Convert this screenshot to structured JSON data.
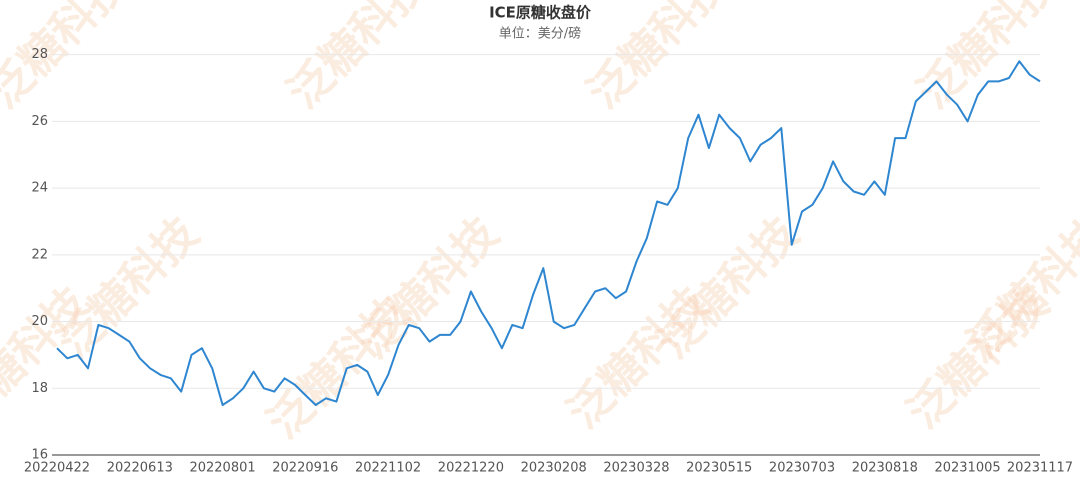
{
  "chart_data": {
    "type": "line",
    "title": "ICE原糖收盘价",
    "subtitle": "单位：美分/磅",
    "watermark": "泛糖科技",
    "categories": [
      "20220422",
      null,
      null,
      null,
      null,
      null,
      null,
      null,
      "20220613",
      null,
      null,
      null,
      null,
      null,
      null,
      null,
      "20220801",
      null,
      null,
      null,
      null,
      null,
      null,
      null,
      "20220916",
      null,
      null,
      null,
      null,
      null,
      null,
      null,
      "20221102",
      null,
      null,
      null,
      null,
      null,
      null,
      null,
      "20221220",
      null,
      null,
      null,
      null,
      null,
      null,
      null,
      "20230208",
      null,
      null,
      null,
      null,
      null,
      null,
      null,
      "20230328",
      null,
      null,
      null,
      null,
      null,
      null,
      null,
      "20230515",
      null,
      null,
      null,
      null,
      null,
      null,
      null,
      "20230703",
      null,
      null,
      null,
      null,
      null,
      null,
      null,
      "20230818",
      null,
      null,
      null,
      null,
      null,
      null,
      null,
      "20231005",
      null,
      null,
      null,
      null,
      null,
      null,
      "20231117"
    ],
    "series": [
      {
        "color": "#2e86d0",
        "values": [
          19.2,
          18.9,
          19.0,
          18.6,
          19.9,
          19.8,
          19.6,
          19.4,
          18.9,
          18.6,
          18.4,
          18.3,
          17.9,
          19.0,
          19.2,
          18.6,
          17.5,
          17.7,
          18.0,
          18.5,
          18.0,
          17.9,
          18.3,
          18.1,
          17.8,
          17.5,
          17.7,
          17.6,
          18.6,
          18.7,
          18.5,
          17.8,
          18.4,
          19.3,
          19.9,
          19.8,
          19.4,
          19.6,
          19.6,
          20.0,
          20.9,
          20.3,
          19.8,
          19.2,
          19.9,
          19.8,
          20.8,
          21.6,
          20.0,
          19.8,
          19.9,
          20.4,
          20.9,
          21.0,
          20.7,
          20.9,
          21.8,
          22.5,
          23.6,
          23.5,
          24.0,
          25.5,
          26.2,
          25.2,
          26.2,
          25.8,
          25.5,
          24.8,
          25.3,
          25.5,
          25.8,
          22.3,
          23.3,
          23.5,
          24.0,
          24.8,
          24.2,
          23.9,
          23.8,
          24.2,
          23.8,
          25.5,
          25.5,
          26.6,
          26.9,
          27.2,
          26.8,
          26.5,
          26.0,
          26.8,
          27.2,
          27.2,
          27.3,
          27.8,
          27.4,
          27.2
        ]
      }
    ],
    "ylim": [
      16,
      28.2
    ],
    "yticks": [
      16,
      18,
      20,
      22,
      24,
      26,
      28
    ],
    "grid": true
  }
}
